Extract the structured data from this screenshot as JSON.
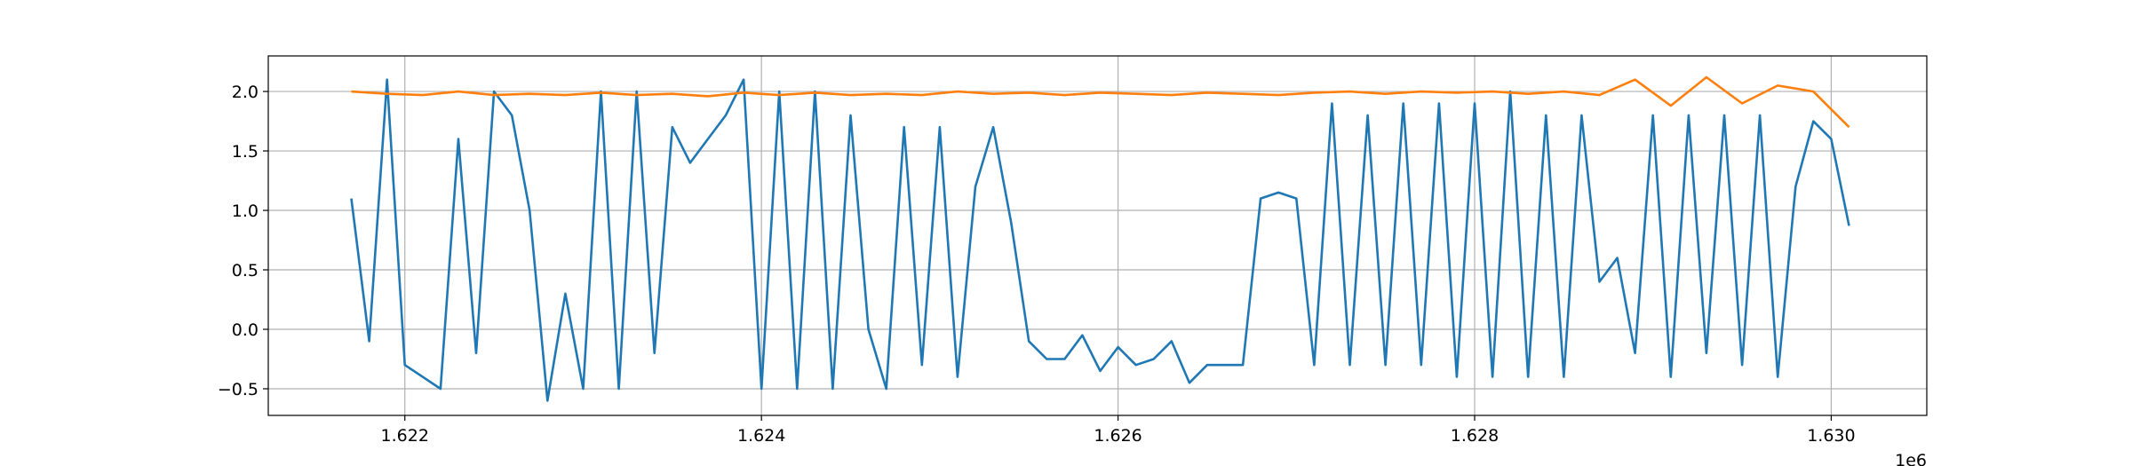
{
  "chart_data": {
    "type": "line",
    "x_offset_label": "1e6",
    "x": [
      1621700,
      1621800,
      1621900,
      1622000,
      1622100,
      1622200,
      1622300,
      1622400,
      1622500,
      1622600,
      1622700,
      1622800,
      1622900,
      1623000,
      1623100,
      1623200,
      1623300,
      1623400,
      1623500,
      1623600,
      1623700,
      1623800,
      1623900,
      1624000,
      1624100,
      1624200,
      1624300,
      1624400,
      1624500,
      1624600,
      1624700,
      1624800,
      1624900,
      1625000,
      1625100,
      1625200,
      1625300,
      1625400,
      1625500,
      1625600,
      1625700,
      1625800,
      1625900,
      1626000,
      1626100,
      1626200,
      1626300,
      1626400,
      1626500,
      1626600,
      1626700,
      1626800,
      1626900,
      1627000,
      1627100,
      1627200,
      1627300,
      1627400,
      1627500,
      1627600,
      1627700,
      1627800,
      1627900,
      1628000,
      1628100,
      1628200,
      1628300,
      1628400,
      1628500,
      1628600,
      1628700,
      1628800,
      1628900,
      1629000,
      1629100,
      1629200,
      1629300,
      1629400,
      1629500,
      1629600,
      1629700,
      1629800,
      1629900,
      1630000,
      1630100
    ],
    "series": [
      {
        "color": "#1f77b4",
        "values": [
          1.1,
          -0.1,
          2.1,
          -0.3,
          -0.4,
          -0.5,
          1.6,
          -0.2,
          2.0,
          1.8,
          1.0,
          -0.6,
          0.3,
          -0.5,
          2.0,
          -0.5,
          2.0,
          -0.2,
          1.7,
          1.4,
          1.6,
          1.8,
          2.1,
          -0.5,
          2.0,
          -0.5,
          2.0,
          -0.5,
          1.8,
          0.0,
          -0.5,
          1.7,
          -0.3,
          1.7,
          -0.4,
          1.2,
          1.7,
          0.9,
          -0.1,
          -0.25,
          -0.25,
          -0.05,
          -0.35,
          -0.15,
          -0.3,
          -0.25,
          -0.1,
          -0.45,
          -0.3,
          -0.3,
          -0.3,
          1.1,
          1.15,
          1.1,
          -0.3,
          1.9,
          -0.3,
          1.8,
          -0.3,
          1.9,
          -0.3,
          1.9,
          -0.4,
          1.9,
          -0.4,
          2.0,
          -0.4,
          1.8,
          -0.4,
          1.8,
          0.4,
          0.6,
          -0.2,
          1.8,
          -0.4,
          1.8,
          -0.2,
          1.8,
          -0.3,
          1.8,
          -0.4,
          1.2,
          1.75,
          1.6,
          0.87
        ]
      },
      {
        "color": "#ff7f0e",
        "x": [
          1621700,
          1621900,
          1622100,
          1622300,
          1622500,
          1622700,
          1622900,
          1623100,
          1623300,
          1623500,
          1623700,
          1623900,
          1624100,
          1624300,
          1624500,
          1624700,
          1624900,
          1625100,
          1625300,
          1625500,
          1625700,
          1625900,
          1626100,
          1626300,
          1626500,
          1626700,
          1626900,
          1627100,
          1627300,
          1627500,
          1627700,
          1627900,
          1628100,
          1628300,
          1628500,
          1628700,
          1628900,
          1629100,
          1629300,
          1629500,
          1629700,
          1629900,
          1630100
        ],
        "values": [
          2.0,
          1.98,
          1.97,
          2.0,
          1.97,
          1.98,
          1.97,
          1.99,
          1.97,
          1.98,
          1.96,
          1.99,
          1.97,
          1.99,
          1.97,
          1.98,
          1.97,
          2.0,
          1.98,
          1.99,
          1.97,
          1.99,
          1.98,
          1.97,
          1.99,
          1.98,
          1.97,
          1.99,
          2.0,
          1.98,
          2.0,
          1.99,
          2.0,
          1.98,
          2.0,
          1.97,
          2.1,
          1.88,
          2.12,
          1.9,
          2.05,
          2.0,
          1.7
        ]
      }
    ],
    "xlim": [
      1621234,
      1630536
    ],
    "ylim": [
      -0.724,
      2.299
    ],
    "xticks": [
      {
        "value": 1622000,
        "label": "1.622"
      },
      {
        "value": 1624000,
        "label": "1.624"
      },
      {
        "value": 1626000,
        "label": "1.626"
      },
      {
        "value": 1628000,
        "label": "1.628"
      },
      {
        "value": 1630000,
        "label": "1.630"
      }
    ],
    "yticks": [
      {
        "value": -0.5,
        "label": "−0.5"
      },
      {
        "value": 0,
        "label": "0.0"
      },
      0.5,
      {
        "value": 1,
        "label": "1.0"
      },
      1.5,
      {
        "value": 2,
        "label": "2.0"
      }
    ],
    "grid": true
  }
}
